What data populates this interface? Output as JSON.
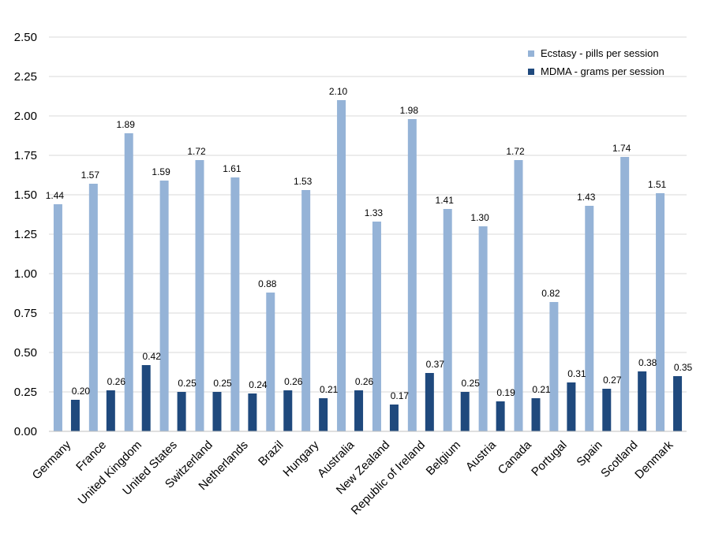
{
  "chart_data": {
    "type": "bar",
    "title": "",
    "xlabel": "",
    "ylabel": "",
    "ylim": [
      0,
      2.5
    ],
    "yticks": [
      "0.00",
      "0.25",
      "0.50",
      "0.75",
      "1.00",
      "1.25",
      "1.50",
      "1.75",
      "2.00",
      "2.25",
      "2.50"
    ],
    "grid": true,
    "legend_position": "top-right",
    "categories": [
      "Germany",
      "France",
      "United Kingdom",
      "United States",
      "Switzerland",
      "Netherlands",
      "Brazil",
      "Hungary",
      "Australia",
      "New Zealand",
      "Republic of Ireland",
      "Belgium",
      "Austria",
      "Canada",
      "Portugal",
      "Spain",
      "Scotland",
      "Denmark"
    ],
    "series": [
      {
        "name": "Ecstasy - pills per session",
        "color": "#95b3d7",
        "values": [
          1.44,
          1.57,
          1.89,
          1.59,
          1.72,
          1.61,
          0.88,
          1.53,
          2.1,
          1.33,
          1.98,
          1.41,
          1.3,
          1.72,
          0.82,
          1.43,
          1.74,
          1.51
        ],
        "labels": [
          "1.44",
          "1.57",
          "1.89",
          "1.59",
          "1.72",
          "1.61",
          "0.88",
          "1.53",
          "2.10",
          "1.33",
          "1.98",
          "1.41",
          "1.30",
          "1.72",
          "0.82",
          "1.43",
          "1.74",
          "1.51"
        ]
      },
      {
        "name": "MDMA - grams per session",
        "color": "#1f497d",
        "values": [
          0.2,
          0.26,
          0.42,
          0.25,
          0.25,
          0.24,
          0.26,
          0.21,
          0.26,
          0.17,
          0.37,
          0.25,
          0.19,
          0.21,
          0.31,
          0.27,
          0.38,
          0.35
        ],
        "labels": [
          "0.20",
          "0.26",
          "0.42",
          "0.25",
          "0.25",
          "0.24",
          "0.26",
          "0.21",
          "0.26",
          "0.17",
          "0.37",
          "0.25",
          "0.19",
          "0.21",
          "0.31",
          "0.27",
          "0.38",
          "0.35"
        ]
      }
    ]
  }
}
